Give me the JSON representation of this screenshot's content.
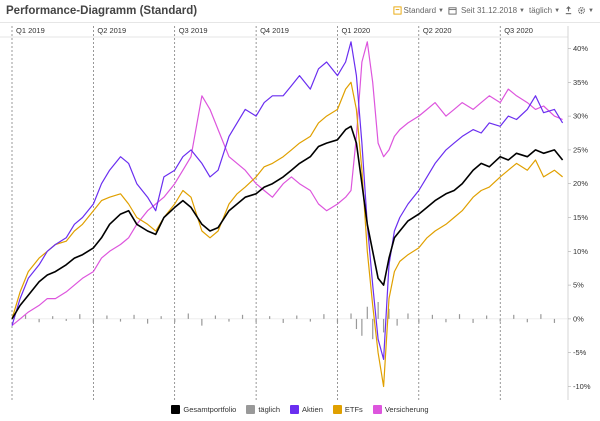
{
  "header": {
    "title": "Performance-Diagramm (Standard)",
    "preset_label": "Standard",
    "period_label": "Seit 31.12.2018",
    "interval_label": "täglich"
  },
  "colors": {
    "gesamt": "#000000",
    "taeglich": "#999999",
    "aktien": "#6a2ef0",
    "etfs": "#e0a000",
    "versicherung": "#dd55dd",
    "accent": "#e8a400"
  },
  "icons": {
    "preset": "bookmark-icon",
    "calendar": "calendar-icon",
    "export": "export-icon",
    "settings": "gear-icon"
  },
  "chart_data": {
    "type": "line",
    "quarters": [
      "Q1 2019",
      "Q2 2019",
      "Q3 2019",
      "Q4 2019",
      "Q1 2020",
      "Q2 2020",
      "Q3 2020"
    ],
    "y_ticks": [
      "40%",
      "35%",
      "30%",
      "25%",
      "20%",
      "15%",
      "10%",
      "5%",
      "0%",
      "-5%",
      "-10%"
    ],
    "ylim": [
      -12,
      42
    ],
    "x_range_months": [
      0,
      20.5
    ],
    "series": [
      {
        "name": "Gesamtportfolio",
        "color": "#000000",
        "points": [
          [
            0,
            0
          ],
          [
            0.3,
            2
          ],
          [
            0.6,
            3.5
          ],
          [
            1,
            5.5
          ],
          [
            1.3,
            6.5
          ],
          [
            1.6,
            7
          ],
          [
            2,
            8
          ],
          [
            2.3,
            9
          ],
          [
            2.6,
            9.5
          ],
          [
            3,
            10.5
          ],
          [
            3.3,
            12
          ],
          [
            3.6,
            14
          ],
          [
            4,
            15.5
          ],
          [
            4.3,
            16
          ],
          [
            4.6,
            14
          ],
          [
            5,
            13
          ],
          [
            5.3,
            12.5
          ],
          [
            5.6,
            15
          ],
          [
            6,
            16.5
          ],
          [
            6.3,
            17.5
          ],
          [
            6.6,
            16.5
          ],
          [
            7,
            14
          ],
          [
            7.3,
            13
          ],
          [
            7.6,
            13.5
          ],
          [
            8,
            16
          ],
          [
            8.3,
            17
          ],
          [
            8.6,
            18
          ],
          [
            9,
            18.5
          ],
          [
            9.3,
            19.5
          ],
          [
            9.6,
            20
          ],
          [
            10,
            21
          ],
          [
            10.3,
            22
          ],
          [
            10.6,
            23
          ],
          [
            11,
            24
          ],
          [
            11.3,
            25.5
          ],
          [
            11.6,
            26
          ],
          [
            12,
            26.5
          ],
          [
            12.3,
            28
          ],
          [
            12.5,
            28.5
          ],
          [
            12.7,
            26
          ],
          [
            12.9,
            20
          ],
          [
            13.1,
            14
          ],
          [
            13.3,
            10
          ],
          [
            13.5,
            6
          ],
          [
            13.7,
            5
          ],
          [
            13.9,
            9
          ],
          [
            14.1,
            12
          ],
          [
            14.3,
            13
          ],
          [
            14.6,
            14.5
          ],
          [
            15,
            15.5
          ],
          [
            15.3,
            16.5
          ],
          [
            15.6,
            17.5
          ],
          [
            16,
            18.5
          ],
          [
            16.3,
            19
          ],
          [
            16.6,
            20
          ],
          [
            17,
            22
          ],
          [
            17.3,
            23
          ],
          [
            17.6,
            22.5
          ],
          [
            18,
            24
          ],
          [
            18.3,
            23.5
          ],
          [
            18.6,
            24.5
          ],
          [
            19,
            24
          ],
          [
            19.3,
            25
          ],
          [
            19.6,
            24.5
          ],
          [
            20,
            25
          ],
          [
            20.3,
            23.5
          ]
        ]
      },
      {
        "name": "Aktien",
        "color": "#6a2ef0",
        "points": [
          [
            0,
            -1
          ],
          [
            0.3,
            3
          ],
          [
            0.6,
            6
          ],
          [
            1,
            8
          ],
          [
            1.3,
            10
          ],
          [
            1.6,
            11
          ],
          [
            2,
            12
          ],
          [
            2.3,
            14
          ],
          [
            2.6,
            15
          ],
          [
            3,
            17
          ],
          [
            3.3,
            20
          ],
          [
            3.6,
            22
          ],
          [
            4,
            24
          ],
          [
            4.3,
            23
          ],
          [
            4.6,
            20
          ],
          [
            5,
            18
          ],
          [
            5.3,
            16
          ],
          [
            5.6,
            21
          ],
          [
            6,
            22
          ],
          [
            6.3,
            24
          ],
          [
            6.6,
            25
          ],
          [
            7,
            23
          ],
          [
            7.3,
            21
          ],
          [
            7.6,
            22
          ],
          [
            8,
            27
          ],
          [
            8.3,
            29
          ],
          [
            8.6,
            31
          ],
          [
            9,
            30
          ],
          [
            9.3,
            32
          ],
          [
            9.6,
            33
          ],
          [
            10,
            33
          ],
          [
            10.3,
            34.5
          ],
          [
            10.6,
            36
          ],
          [
            11,
            34
          ],
          [
            11.3,
            37
          ],
          [
            11.6,
            38
          ],
          [
            12,
            36
          ],
          [
            12.3,
            38
          ],
          [
            12.5,
            41
          ],
          [
            12.7,
            36
          ],
          [
            12.9,
            26
          ],
          [
            13.1,
            14
          ],
          [
            13.3,
            5
          ],
          [
            13.5,
            -3
          ],
          [
            13.7,
            -6
          ],
          [
            13.9,
            8
          ],
          [
            14.1,
            13
          ],
          [
            14.3,
            15
          ],
          [
            14.6,
            17
          ],
          [
            15,
            19
          ],
          [
            15.3,
            21
          ],
          [
            15.6,
            23
          ],
          [
            16,
            25
          ],
          [
            16.3,
            26
          ],
          [
            16.6,
            27
          ],
          [
            17,
            28
          ],
          [
            17.3,
            27.5
          ],
          [
            17.6,
            29
          ],
          [
            18,
            28.5
          ],
          [
            18.3,
            30
          ],
          [
            18.6,
            29.5
          ],
          [
            19,
            31
          ],
          [
            19.3,
            33
          ],
          [
            19.6,
            30.5
          ],
          [
            20,
            31
          ],
          [
            20.3,
            29
          ]
        ]
      },
      {
        "name": "ETFs",
        "color": "#e0a000",
        "points": [
          [
            0,
            0
          ],
          [
            0.3,
            4
          ],
          [
            0.6,
            7
          ],
          [
            1,
            9
          ],
          [
            1.3,
            10
          ],
          [
            1.6,
            11
          ],
          [
            2,
            11.5
          ],
          [
            2.3,
            13
          ],
          [
            2.6,
            14
          ],
          [
            3,
            16
          ],
          [
            3.3,
            17.5
          ],
          [
            3.6,
            18
          ],
          [
            4,
            18.5
          ],
          [
            4.3,
            17
          ],
          [
            4.6,
            15
          ],
          [
            5,
            14
          ],
          [
            5.3,
            13
          ],
          [
            5.6,
            15
          ],
          [
            6,
            17
          ],
          [
            6.3,
            19
          ],
          [
            6.6,
            18
          ],
          [
            7,
            13
          ],
          [
            7.3,
            12
          ],
          [
            7.6,
            13
          ],
          [
            8,
            17
          ],
          [
            8.3,
            18.5
          ],
          [
            8.6,
            19.5
          ],
          [
            9,
            21
          ],
          [
            9.3,
            22.5
          ],
          [
            9.6,
            23
          ],
          [
            10,
            24
          ],
          [
            10.3,
            25
          ],
          [
            10.6,
            26
          ],
          [
            11,
            27
          ],
          [
            11.3,
            29
          ],
          [
            11.6,
            30
          ],
          [
            12,
            31
          ],
          [
            12.3,
            34
          ],
          [
            12.5,
            35
          ],
          [
            12.7,
            31
          ],
          [
            12.9,
            22
          ],
          [
            13.1,
            10
          ],
          [
            13.3,
            2
          ],
          [
            13.5,
            -5
          ],
          [
            13.7,
            -10
          ],
          [
            13.9,
            3
          ],
          [
            14.1,
            7
          ],
          [
            14.3,
            8.5
          ],
          [
            14.6,
            9.5
          ],
          [
            15,
            10.5
          ],
          [
            15.3,
            12
          ],
          [
            15.6,
            13
          ],
          [
            16,
            14
          ],
          [
            16.3,
            15
          ],
          [
            16.6,
            16
          ],
          [
            17,
            18
          ],
          [
            17.3,
            19
          ],
          [
            17.6,
            19.5
          ],
          [
            18,
            21
          ],
          [
            18.3,
            22
          ],
          [
            18.6,
            23
          ],
          [
            19,
            22
          ],
          [
            19.3,
            23.5
          ],
          [
            19.6,
            21
          ],
          [
            20,
            22
          ],
          [
            20.3,
            21
          ]
        ]
      },
      {
        "name": "Versicherung",
        "color": "#dd55dd",
        "points": [
          [
            0,
            -1
          ],
          [
            0.3,
            0
          ],
          [
            0.6,
            1
          ],
          [
            1,
            2
          ],
          [
            1.3,
            3
          ],
          [
            1.6,
            3
          ],
          [
            2,
            4
          ],
          [
            2.3,
            5
          ],
          [
            2.6,
            6
          ],
          [
            3,
            7
          ],
          [
            3.3,
            9
          ],
          [
            3.6,
            10
          ],
          [
            4,
            11
          ],
          [
            4.3,
            12
          ],
          [
            4.6,
            14
          ],
          [
            5,
            16
          ],
          [
            5.3,
            17
          ],
          [
            5.6,
            18
          ],
          [
            6,
            20
          ],
          [
            6.3,
            22
          ],
          [
            6.6,
            24
          ],
          [
            7,
            33
          ],
          [
            7.3,
            31
          ],
          [
            7.6,
            28
          ],
          [
            8,
            24
          ],
          [
            8.3,
            23
          ],
          [
            8.6,
            22
          ],
          [
            9,
            20
          ],
          [
            9.3,
            19
          ],
          [
            9.6,
            18
          ],
          [
            10,
            20
          ],
          [
            10.3,
            21
          ],
          [
            10.6,
            20
          ],
          [
            11,
            19
          ],
          [
            11.3,
            17
          ],
          [
            11.6,
            16
          ],
          [
            12,
            17
          ],
          [
            12.3,
            18
          ],
          [
            12.5,
            19
          ],
          [
            12.7,
            27
          ],
          [
            12.9,
            38
          ],
          [
            13.1,
            41
          ],
          [
            13.3,
            35
          ],
          [
            13.5,
            26
          ],
          [
            13.7,
            24
          ],
          [
            13.9,
            25
          ],
          [
            14.1,
            27
          ],
          [
            14.3,
            28
          ],
          [
            14.6,
            29
          ],
          [
            15,
            30
          ],
          [
            15.3,
            31
          ],
          [
            15.6,
            32
          ],
          [
            16,
            30
          ],
          [
            16.3,
            31
          ],
          [
            16.6,
            32
          ],
          [
            17,
            31
          ],
          [
            17.3,
            32
          ],
          [
            17.6,
            33
          ],
          [
            18,
            32
          ],
          [
            18.3,
            34
          ],
          [
            18.6,
            33
          ],
          [
            19,
            32
          ],
          [
            19.3,
            31
          ],
          [
            19.6,
            31.5
          ],
          [
            20,
            30
          ],
          [
            20.3,
            29.5
          ]
        ]
      },
      {
        "name": "täglich",
        "color": "#999999",
        "type": "bar",
        "points": [
          [
            0.5,
            0.6
          ],
          [
            1,
            -0.5
          ],
          [
            1.5,
            0.4
          ],
          [
            2,
            -0.3
          ],
          [
            2.5,
            0.7
          ],
          [
            3,
            -0.6
          ],
          [
            3.5,
            0.5
          ],
          [
            4,
            -0.4
          ],
          [
            4.5,
            0.6
          ],
          [
            5,
            -0.7
          ],
          [
            5.5,
            0.4
          ],
          [
            6,
            -0.5
          ],
          [
            6.5,
            0.8
          ],
          [
            7,
            -1
          ],
          [
            7.5,
            0.5
          ],
          [
            8,
            -0.4
          ],
          [
            8.5,
            0.6
          ],
          [
            9,
            -0.5
          ],
          [
            9.5,
            0.4
          ],
          [
            10,
            -0.6
          ],
          [
            10.5,
            0.5
          ],
          [
            11,
            -0.4
          ],
          [
            11.5,
            0.7
          ],
          [
            12,
            -0.6
          ],
          [
            12.5,
            0.8
          ],
          [
            12.7,
            -1.5
          ],
          [
            12.9,
            -2.5
          ],
          [
            13.1,
            1.8
          ],
          [
            13.3,
            -3
          ],
          [
            13.5,
            2.5
          ],
          [
            13.7,
            -2
          ],
          [
            13.9,
            1.5
          ],
          [
            14.2,
            -1
          ],
          [
            14.6,
            0.8
          ],
          [
            15,
            -0.7
          ],
          [
            15.5,
            0.6
          ],
          [
            16,
            -0.5
          ],
          [
            16.5,
            0.7
          ],
          [
            17,
            -0.6
          ],
          [
            17.5,
            0.5
          ],
          [
            18,
            -0.4
          ],
          [
            18.5,
            0.6
          ],
          [
            19,
            -0.5
          ],
          [
            19.5,
            0.7
          ],
          [
            20,
            -0.6
          ]
        ]
      }
    ],
    "legend": [
      "Gesamtportfolio",
      "täglich",
      "Aktien",
      "ETFs",
      "Versicherung"
    ],
    "grid": "vertical dashed quarter lines",
    "legend_position": "bottom-center"
  }
}
